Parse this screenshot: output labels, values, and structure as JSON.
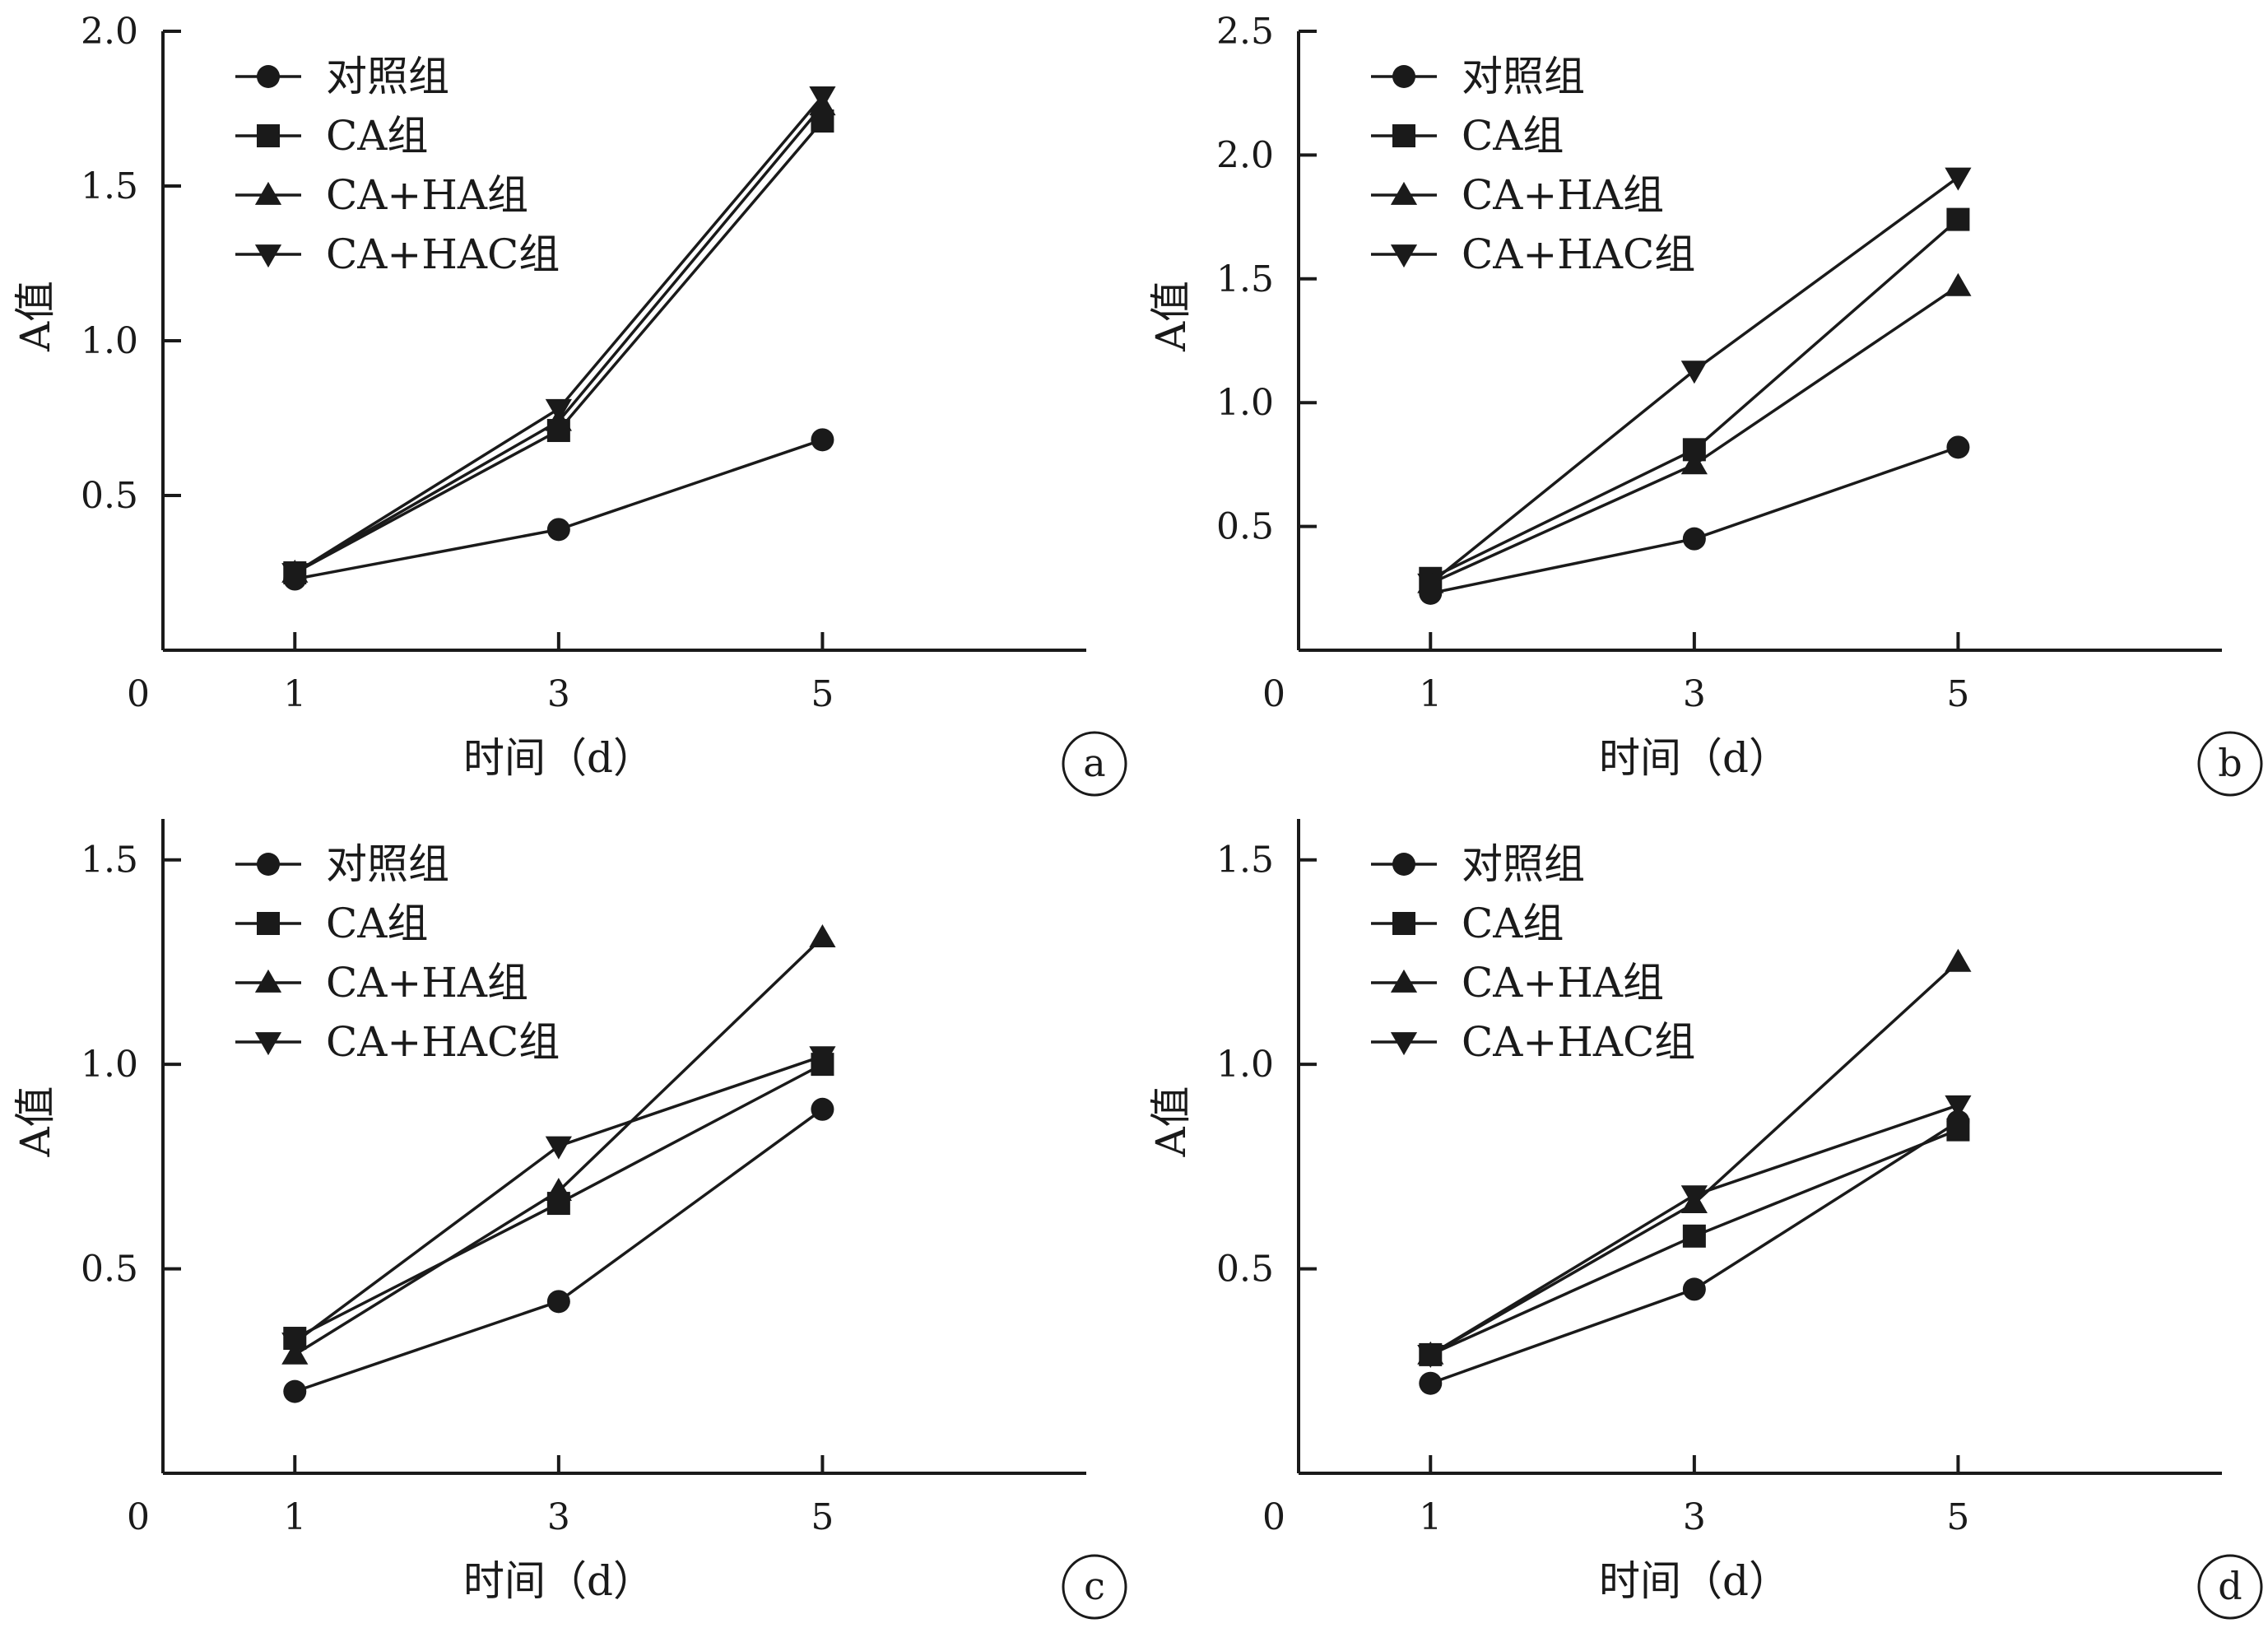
{
  "figure": {
    "legend_labels": [
      "对照组",
      "CA组",
      "CA+HA组",
      "CA+HAC组"
    ],
    "xlabel": "时间（d）",
    "ylabel": "A值",
    "x_origin_label": "0",
    "colors": {
      "ink": "#1a1a1a",
      "background": "#ffffff"
    },
    "markers": [
      "circle",
      "square",
      "triangle-up",
      "triangle-down"
    ]
  },
  "chart_data": [
    {
      "panel": "a",
      "type": "line",
      "x": [
        1,
        3,
        5
      ],
      "xlim": [
        0,
        7
      ],
      "ylim": [
        0,
        2.0
      ],
      "yticks": [
        0.5,
        1.0,
        1.5,
        2.0
      ],
      "ytick_labels": [
        "0.5",
        "1.0",
        "1.5",
        "2.0"
      ],
      "xticks": [
        1,
        3,
        5
      ],
      "xtick_labels": [
        "1",
        "3",
        "5"
      ],
      "legend_position": "top-left",
      "series": [
        {
          "name": "对照组",
          "marker": "circle",
          "values": [
            0.23,
            0.39,
            0.68
          ]
        },
        {
          "name": "CA组",
          "marker": "square",
          "values": [
            0.25,
            0.71,
            1.71
          ]
        },
        {
          "name": "CA+HA组",
          "marker": "triangle-up",
          "values": [
            0.25,
            0.74,
            1.76
          ]
        },
        {
          "name": "CA+HAC组",
          "marker": "triangle-down",
          "values": [
            0.25,
            0.78,
            1.79
          ]
        }
      ]
    },
    {
      "panel": "b",
      "type": "line",
      "x": [
        1,
        3,
        5
      ],
      "xlim": [
        0,
        7
      ],
      "ylim": [
        0,
        2.5
      ],
      "yticks": [
        0.5,
        1.0,
        1.5,
        2.0,
        2.5
      ],
      "ytick_labels": [
        "0.5",
        "1.0",
        "1.5",
        "2.0",
        "2.5"
      ],
      "xticks": [
        1,
        3,
        5
      ],
      "xtick_labels": [
        "1",
        "3",
        "5"
      ],
      "legend_position": "top-left",
      "series": [
        {
          "name": "对照组",
          "marker": "circle",
          "values": [
            0.23,
            0.45,
            0.82
          ]
        },
        {
          "name": "CA组",
          "marker": "square",
          "values": [
            0.29,
            0.81,
            1.74
          ]
        },
        {
          "name": "CA+HA组",
          "marker": "triangle-up",
          "values": [
            0.27,
            0.75,
            1.47
          ]
        },
        {
          "name": "CA+HAC组",
          "marker": "triangle-down",
          "values": [
            0.27,
            1.13,
            1.91
          ]
        }
      ]
    },
    {
      "panel": "c",
      "type": "line",
      "x": [
        1,
        3,
        5
      ],
      "xlim": [
        0,
        7
      ],
      "ylim": [
        0,
        1.6
      ],
      "yticks": [
        0.5,
        1.0,
        1.5
      ],
      "ytick_labels": [
        "0.5",
        "1.0",
        "1.5"
      ],
      "xticks": [
        1,
        3,
        5
      ],
      "xtick_labels": [
        "1",
        "3",
        "5"
      ],
      "legend_position": "top-left",
      "series": [
        {
          "name": "对照组",
          "marker": "circle",
          "values": [
            0.2,
            0.42,
            0.89
          ]
        },
        {
          "name": "CA组",
          "marker": "square",
          "values": [
            0.33,
            0.66,
            1.0
          ]
        },
        {
          "name": "CA+HA组",
          "marker": "triangle-up",
          "values": [
            0.29,
            0.69,
            1.31
          ]
        },
        {
          "name": "CA+HAC组",
          "marker": "triangle-down",
          "values": [
            0.32,
            0.8,
            1.02
          ]
        }
      ]
    },
    {
      "panel": "d",
      "type": "line",
      "x": [
        1,
        3,
        5
      ],
      "xlim": [
        0,
        7
      ],
      "ylim": [
        0,
        1.6
      ],
      "yticks": [
        0.5,
        1.0,
        1.5
      ],
      "ytick_labels": [
        "0.5",
        "1.0",
        "1.5"
      ],
      "xticks": [
        1,
        3,
        5
      ],
      "xtick_labels": [
        "1",
        "3",
        "5"
      ],
      "legend_position": "top-left",
      "series": [
        {
          "name": "对照组",
          "marker": "circle",
          "values": [
            0.22,
            0.45,
            0.86
          ]
        },
        {
          "name": "CA组",
          "marker": "square",
          "values": [
            0.29,
            0.58,
            0.84
          ]
        },
        {
          "name": "CA+HA组",
          "marker": "triangle-up",
          "values": [
            0.29,
            0.66,
            1.25
          ]
        },
        {
          "name": "CA+HAC组",
          "marker": "triangle-down",
          "values": [
            0.29,
            0.68,
            0.9
          ]
        }
      ]
    }
  ]
}
